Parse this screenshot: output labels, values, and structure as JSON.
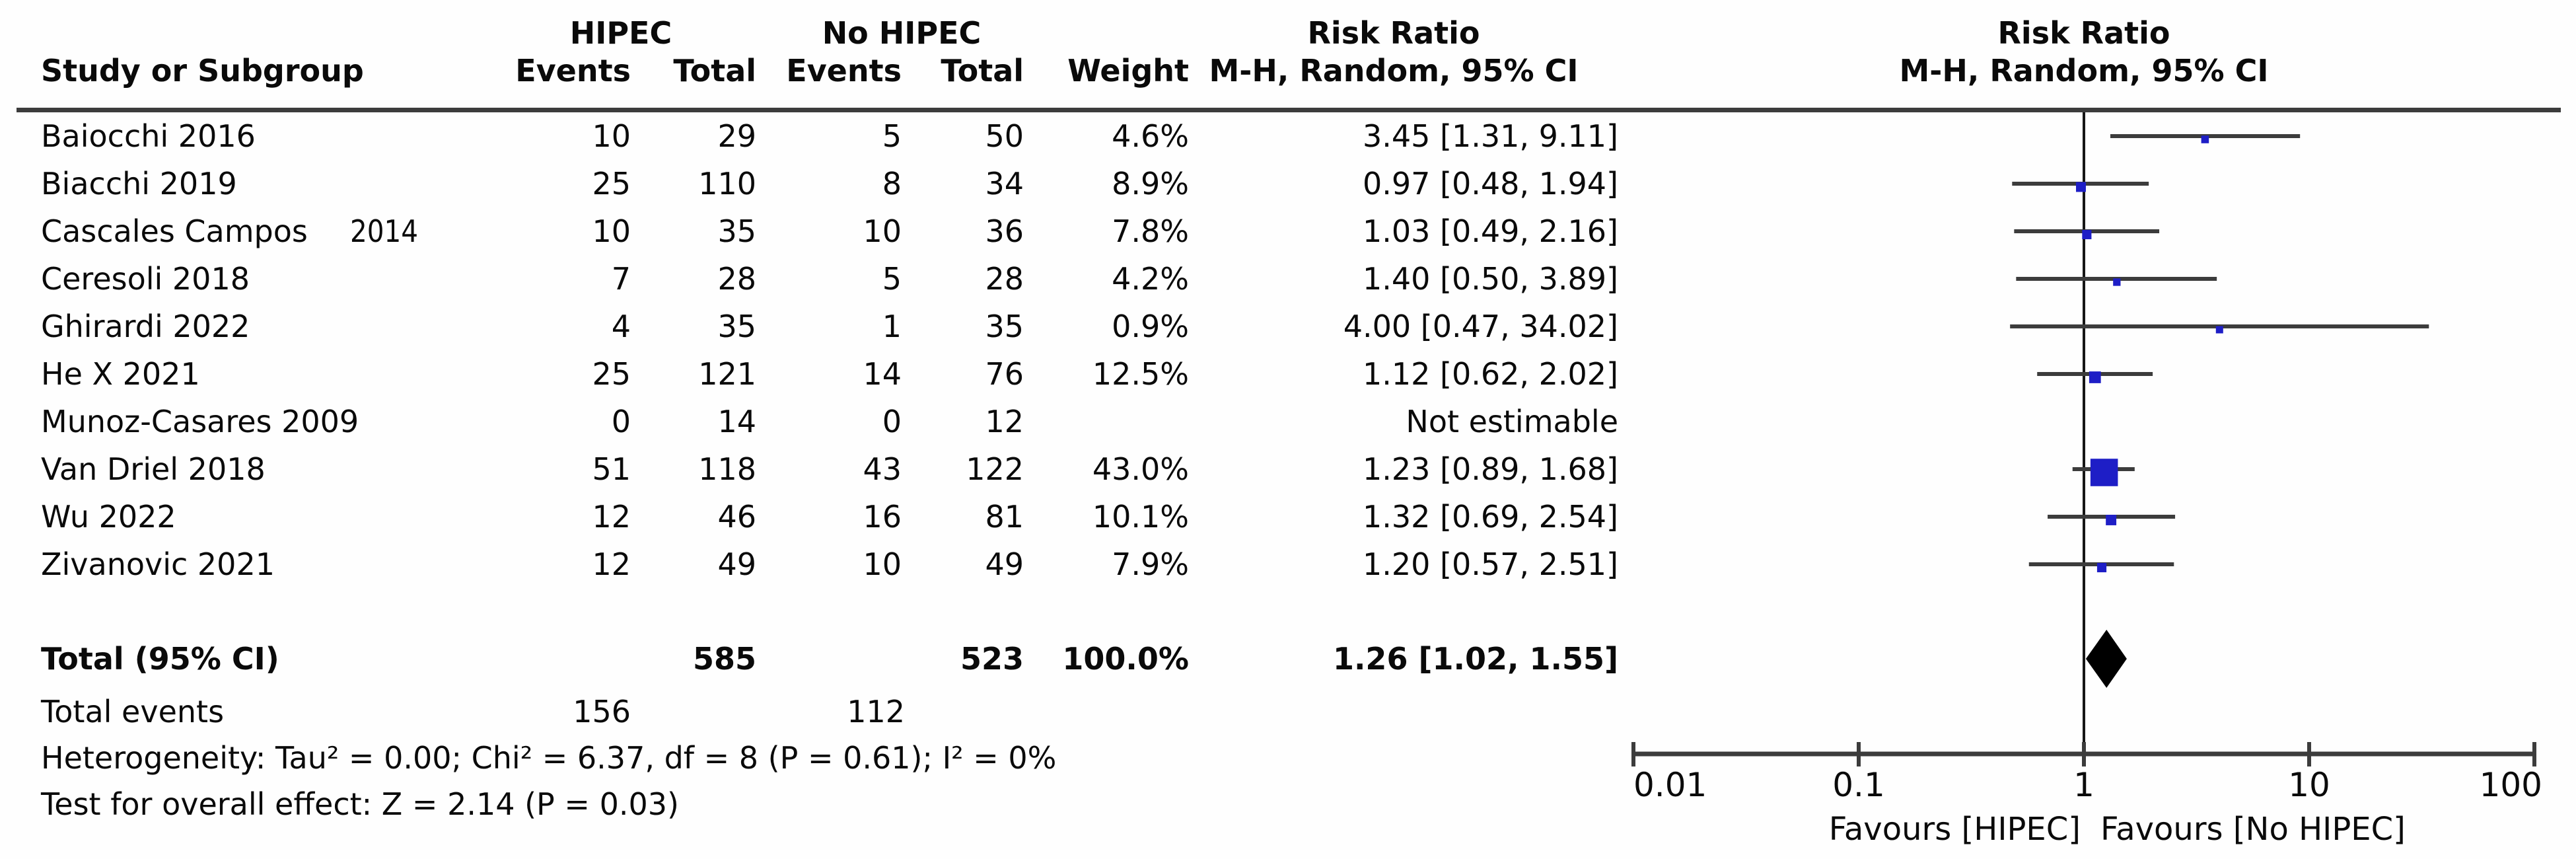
{
  "figure": {
    "columns": {
      "study": "Study or Subgroup",
      "group1": "HIPEC",
      "group2": "No HIPEC",
      "events": "Events",
      "total": "Total",
      "weight": "Weight",
      "effect": "Risk Ratio",
      "method": "M-H, Random, 95% CI"
    },
    "total_row": {
      "label": "Total (95% CI)",
      "total1": "585",
      "total2": "523",
      "weight": "100.0%",
      "rr_label": "1.26 [1.02, 1.55]"
    },
    "total_events": {
      "label": "Total events",
      "events1": "156",
      "events2": "112"
    },
    "footnotes": {
      "heterogeneity": "Heterogeneity: Tau² = 0.00; Chi² = 6.37, df = 8 (P = 0.61); I² = 0%",
      "overall_effect": "Test for overall effect: Z = 2.14 (P = 0.03)"
    },
    "colors": {
      "marker_blue": "#1e1ec6",
      "line_gray": "#3c3c3c",
      "diamond_black": "#000000"
    }
  },
  "chart_data": {
    "type": "scatter",
    "title": "Risk Ratio, M-H, Random, 95% CI (forest plot)",
    "effect_measure": "Risk Ratio",
    "method": "M-H, Random, 95% CI",
    "x_scale": "log",
    "xlim": [
      0.01,
      100
    ],
    "x_ticks": [
      0.01,
      0.1,
      1,
      10,
      100
    ],
    "x_tick_labels": [
      "0.01",
      "0.1",
      "1",
      "10",
      "100"
    ],
    "x_axis_labels": {
      "left": "Favours [HIPEC]",
      "right": "Favours [No HIPEC]"
    },
    "studies": [
      {
        "study": "Baiocchi 2016",
        "events1": "10",
        "total1": "29",
        "events2": "5",
        "total2": "50",
        "weight": "4.6%",
        "weight_pct": 4.6,
        "rr_label": "3.45 [1.31, 9.11]",
        "rr": 3.45,
        "ci_low": 1.31,
        "ci_high": 9.11,
        "estimable": true
      },
      {
        "study": "Biacchi 2019",
        "events1": "25",
        "total1": "110",
        "events2": "8",
        "total2": "34",
        "weight": "8.9%",
        "weight_pct": 8.9,
        "rr_label": "0.97 [0.48, 1.94]",
        "rr": 0.97,
        "ci_low": 0.48,
        "ci_high": 1.94,
        "estimable": true
      },
      {
        "study": "Cascales Campos",
        "study2": "2014",
        "events1": "10",
        "total1": "35",
        "events2": "10",
        "total2": "36",
        "weight": "7.8%",
        "weight_pct": 7.8,
        "rr_label": "1.03 [0.49, 2.16]",
        "rr": 1.03,
        "ci_low": 0.49,
        "ci_high": 2.16,
        "estimable": true
      },
      {
        "study": "Ceresoli 2018",
        "events1": "7",
        "total1": "28",
        "events2": "5",
        "total2": "28",
        "weight": "4.2%",
        "weight_pct": 4.2,
        "rr_label": "1.40 [0.50, 3.89]",
        "rr": 1.4,
        "ci_low": 0.5,
        "ci_high": 3.89,
        "estimable": true
      },
      {
        "study": "Ghirardi 2022",
        "events1": "4",
        "total1": "35",
        "events2": "1",
        "total2": "35",
        "weight": "0.9%",
        "weight_pct": 0.9,
        "rr_label": "4.00 [0.47, 34.02]",
        "rr": 4.0,
        "ci_low": 0.47,
        "ci_high": 34.02,
        "estimable": true
      },
      {
        "study": "He X 2021",
        "events1": "25",
        "total1": "121",
        "events2": "14",
        "total2": "76",
        "weight": "12.5%",
        "weight_pct": 12.5,
        "rr_label": "1.12 [0.62, 2.02]",
        "rr": 1.12,
        "ci_low": 0.62,
        "ci_high": 2.02,
        "estimable": true
      },
      {
        "study": "Munoz-Casares 2009",
        "events1": "0",
        "total1": "14",
        "events2": "0",
        "total2": "12",
        "weight": "",
        "weight_pct": null,
        "rr_label": "Not estimable",
        "rr": null,
        "ci_low": null,
        "ci_high": null,
        "estimable": false
      },
      {
        "study": "Van Driel 2018",
        "events1": "51",
        "total1": "118",
        "events2": "43",
        "total2": "122",
        "weight": "43.0%",
        "weight_pct": 43.0,
        "rr_label": "1.23 [0.89, 1.68]",
        "rr": 1.23,
        "ci_low": 0.89,
        "ci_high": 1.68,
        "estimable": true
      },
      {
        "study": "Wu 2022",
        "events1": "12",
        "total1": "46",
        "events2": "16",
        "total2": "81",
        "weight": "10.1%",
        "weight_pct": 10.1,
        "rr_label": "1.32 [0.69, 2.54]",
        "rr": 1.32,
        "ci_low": 0.69,
        "ci_high": 2.54,
        "estimable": true
      },
      {
        "study": "Zivanovic 2021",
        "events1": "12",
        "total1": "49",
        "events2": "10",
        "total2": "49",
        "weight": "7.9%",
        "weight_pct": 7.9,
        "rr_label": "1.20 [0.57, 2.51]",
        "rr": 1.2,
        "ci_low": 0.57,
        "ci_high": 2.51,
        "estimable": true
      }
    ],
    "summary": {
      "rr": 1.26,
      "ci_low": 1.02,
      "ci_high": 1.55
    }
  }
}
